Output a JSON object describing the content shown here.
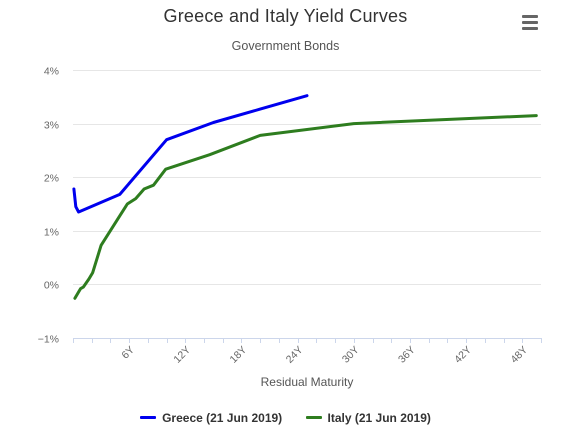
{
  "chart_data": {
    "type": "line",
    "title": "Greece and Italy Yield Curves",
    "subtitle": "Government Bonds",
    "xlabel": "Residual Maturity",
    "ylabel": "",
    "xlim": [
      0,
      50
    ],
    "ylim": [
      -1,
      4
    ],
    "x_ticks": [
      {
        "value": 6,
        "label": "6Y"
      },
      {
        "value": 12,
        "label": "12Y"
      },
      {
        "value": 18,
        "label": "18Y"
      },
      {
        "value": 24,
        "label": "24Y"
      },
      {
        "value": 30,
        "label": "30Y"
      },
      {
        "value": 36,
        "label": "36Y"
      },
      {
        "value": 42,
        "label": "42Y"
      },
      {
        "value": 48,
        "label": "48Y"
      }
    ],
    "y_ticks": [
      {
        "value": 4,
        "label": "4%"
      },
      {
        "value": 3,
        "label": "3%"
      },
      {
        "value": 2,
        "label": "2%"
      },
      {
        "value": 1,
        "label": "1%"
      },
      {
        "value": 0,
        "label": "0%"
      },
      {
        "value": -1,
        "label": "−1%"
      }
    ],
    "grid": "horizontal",
    "legend_position": "bottom-center",
    "series": [
      {
        "name": "Greece (21 Jun 2019)",
        "color": "#0000ee",
        "points": [
          [
            0.1,
            1.78
          ],
          [
            0.3,
            1.45
          ],
          [
            0.6,
            1.35
          ],
          [
            5,
            1.68
          ],
          [
            10,
            2.7
          ],
          [
            15,
            3.02
          ],
          [
            20,
            3.27
          ],
          [
            25,
            3.52
          ]
        ]
      },
      {
        "name": "Italy (21 Jun 2019)",
        "color": "#2e7d1f",
        "points": [
          [
            0.2,
            -0.26
          ],
          [
            0.8,
            -0.08
          ],
          [
            1.1,
            -0.05
          ],
          [
            1.7,
            0.1
          ],
          [
            2.1,
            0.22
          ],
          [
            3,
            0.73
          ],
          [
            5,
            1.28
          ],
          [
            5.8,
            1.5
          ],
          [
            6.7,
            1.6
          ],
          [
            7.6,
            1.78
          ],
          [
            8.6,
            1.85
          ],
          [
            9.9,
            2.15
          ],
          [
            14.6,
            2.42
          ],
          [
            20,
            2.78
          ],
          [
            30,
            3.0
          ],
          [
            49.5,
            3.15
          ]
        ]
      }
    ]
  }
}
